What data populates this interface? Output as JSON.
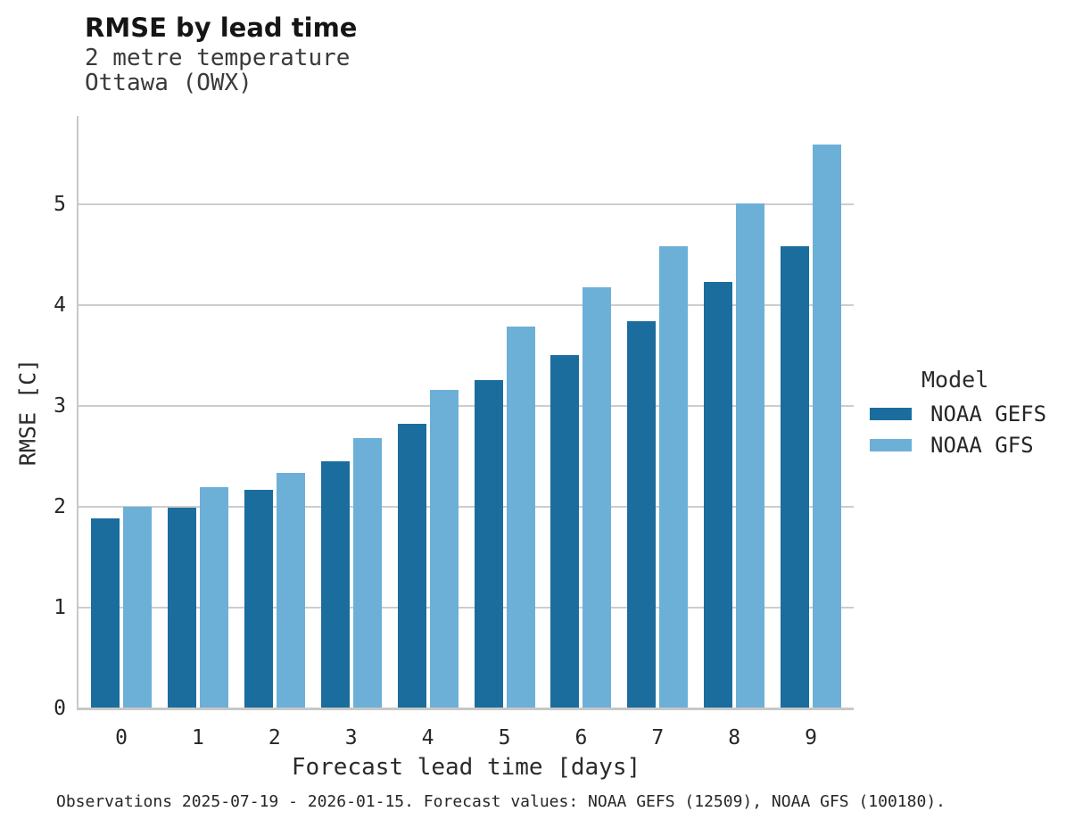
{
  "header": {
    "title": "RMSE by lead time",
    "subtitle_line1": "2 metre temperature",
    "subtitle_line2": "Ottawa (OWX)"
  },
  "legend": {
    "title": "Model"
  },
  "footer": {
    "caption": "Observations 2025-07-19 - 2026-01-15. Forecast values: NOAA GEFS (12509), NOAA GFS (100180)."
  },
  "colors": {
    "gefs_bar": "#1b6d9e",
    "gfs_bar": "#6cb0d8",
    "gridline": "#cdcdcd",
    "spine": "#c8c8c8",
    "text": "#262626"
  },
  "chart_data": {
    "type": "bar",
    "title": "RMSE by lead time",
    "subtitle_lines": [
      "2 metre temperature",
      "Ottawa (OWX)"
    ],
    "categories": [
      "0",
      "1",
      "2",
      "3",
      "4",
      "5",
      "6",
      "7",
      "8",
      "9"
    ],
    "series": [
      {
        "name": "NOAA GEFS",
        "color": "#1b6d9e",
        "values": [
          1.88,
          1.98,
          2.16,
          2.44,
          2.82,
          3.25,
          3.5,
          3.83,
          4.22,
          4.58
        ]
      },
      {
        "name": "NOAA GFS",
        "color": "#6cb0d8",
        "values": [
          1.99,
          2.19,
          2.33,
          2.67,
          3.15,
          3.78,
          4.17,
          4.58,
          5.0,
          5.59
        ]
      }
    ],
    "xlabel": "Forecast lead time [days]",
    "ylabel": "RMSE [C]",
    "ylim": [
      0,
      5.88
    ],
    "yticks": [
      0,
      1,
      2,
      3,
      4,
      5
    ],
    "grid": "horizontal",
    "legend_title": "Model",
    "legend_position": "right",
    "caption": "Observations 2025-07-19 - 2026-01-15. Forecast values: NOAA GEFS (12509), NOAA GFS (100180)."
  }
}
